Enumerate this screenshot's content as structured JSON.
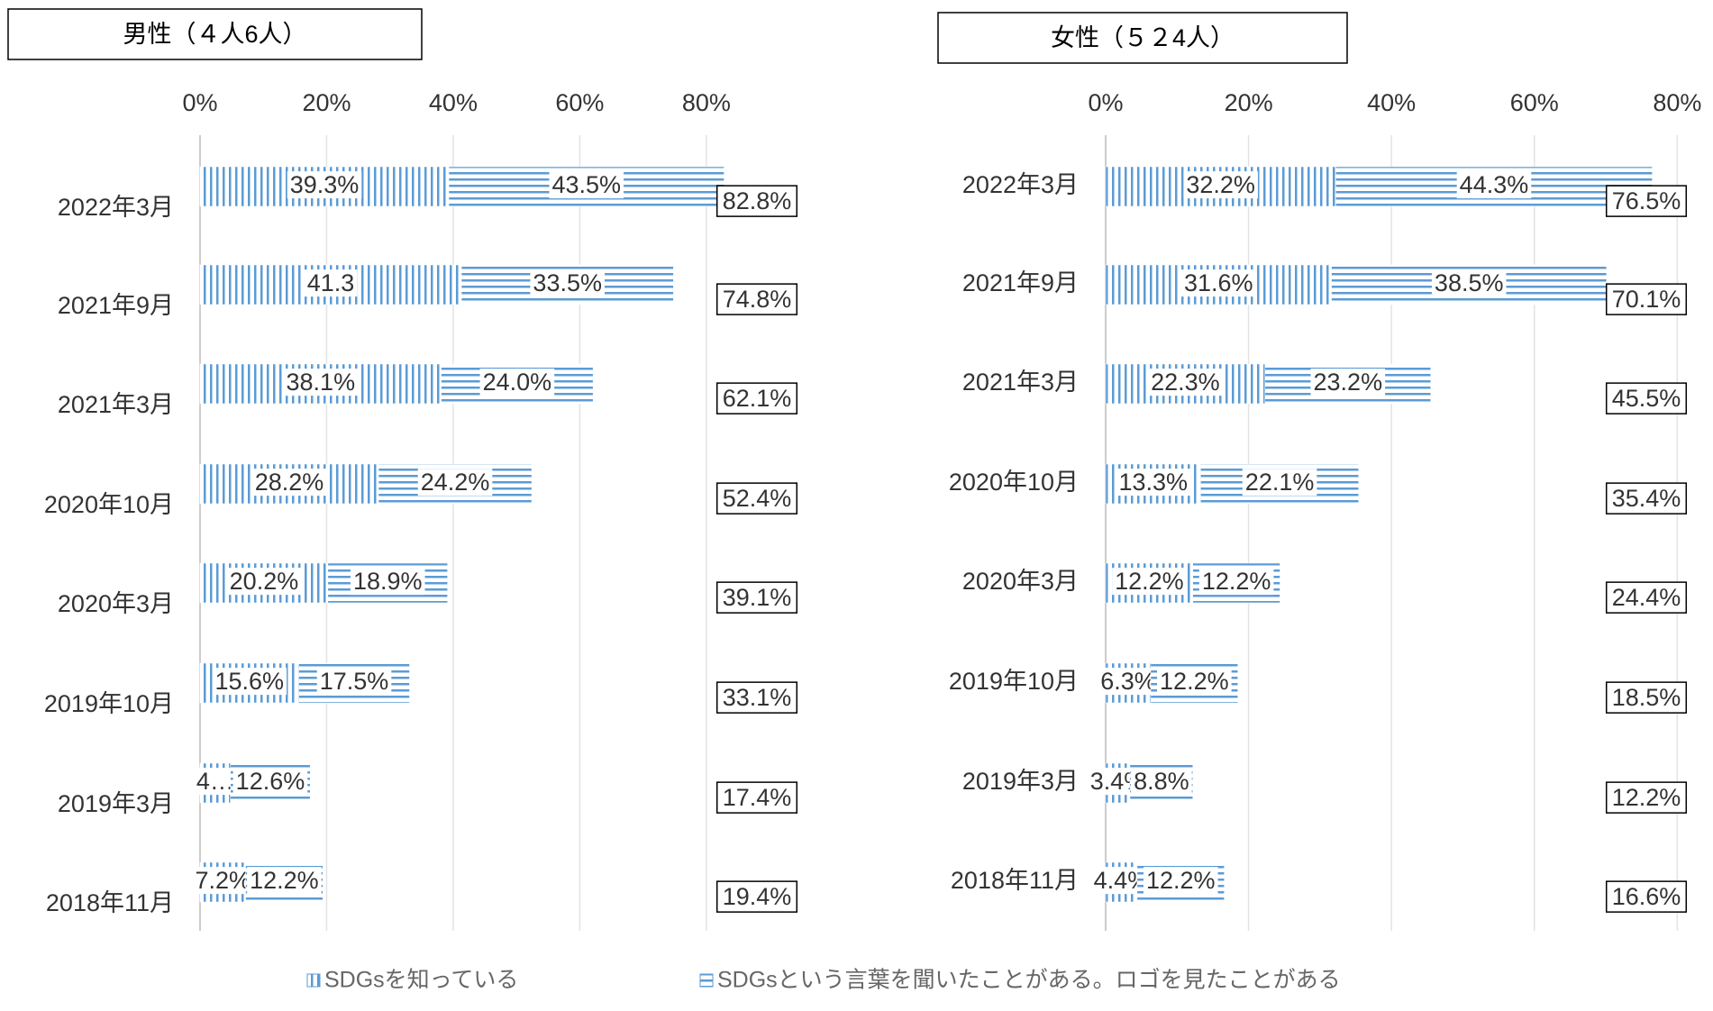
{
  "chart_data": [
    {
      "type": "bar",
      "title": "男性（４人6人）",
      "categories": [
        "2022年3月",
        "2021年9月",
        "2021年3月",
        "2020年10月",
        "2020年3月",
        "2019年10月",
        "2019年3月",
        "2018年11月"
      ],
      "series": [
        {
          "name": "SDGsを知っている",
          "color": "#5b9bd5",
          "values": [
            39.3,
            41.3,
            38.1,
            28.2,
            20.2,
            15.6,
            4.8,
            7.2
          ],
          "value_labels": [
            "39.3%",
            "41.3",
            "38.1%",
            "28.2%",
            "20.2%",
            "15.6%",
            "4…",
            "7.2%"
          ]
        },
        {
          "name": "SDGsという言葉を聞いたことがある。ロゴを見たことがある",
          "color": "#5b9bd5",
          "values": [
            43.5,
            33.5,
            24.0,
            24.2,
            18.9,
            17.5,
            12.6,
            12.2
          ],
          "value_labels": [
            "43.5%",
            "33.5%",
            "24.0%",
            "24.2%",
            "18.9%",
            "17.5%",
            "12.6%",
            "12.2%"
          ]
        }
      ],
      "totals": [
        82.8,
        74.8,
        62.1,
        52.4,
        39.1,
        33.1,
        17.4,
        19.4
      ],
      "total_labels": [
        "82.8%",
        "74.8%",
        "62.1%",
        "52.4%",
        "39.1%",
        "33.1%",
        "17.4%",
        "19.4%"
      ],
      "xlim": [
        0,
        85
      ],
      "xticks": [
        {
          "value": 0,
          "label": "0%"
        },
        {
          "value": 20,
          "label": "20%"
        },
        {
          "value": 40,
          "label": "40%"
        },
        {
          "value": 60,
          "label": "60%"
        },
        {
          "value": 80,
          "label": "80%"
        }
      ],
      "grid": true
    },
    {
      "type": "bar",
      "title": "女性（５２4人）",
      "categories": [
        "2022年3月",
        "2021年9月",
        "2021年3月",
        "2020年10月",
        "2020年3月",
        "2019年10月",
        "2019年3月",
        "2018年11月"
      ],
      "series": [
        {
          "name": "SDGsを知っている",
          "color": "#5b9bd5",
          "values": [
            32.2,
            31.6,
            22.3,
            13.3,
            12.2,
            6.3,
            3.4,
            4.4
          ],
          "value_labels": [
            "32.2%",
            "31.6%",
            "22.3%",
            "13.3%",
            "12.2%",
            "6.3%",
            "3.4%",
            "4.4%"
          ]
        },
        {
          "name": "SDGsという言葉を聞いたことがある。ロゴを見たことがある",
          "color": "#5b9bd5",
          "values": [
            44.3,
            38.5,
            23.2,
            22.1,
            12.2,
            12.2,
            8.8,
            12.2
          ],
          "value_labels": [
            "44.3%",
            "38.5%",
            "23.2%",
            "22.1%",
            "12.2%",
            "12.2%",
            "8.8%",
            "12.2%"
          ]
        }
      ],
      "totals": [
        76.5,
        70.1,
        45.5,
        35.4,
        24.4,
        18.5,
        12.2,
        16.6
      ],
      "total_labels": [
        "76.5%",
        "70.1%",
        "45.5%",
        "35.4%",
        "24.4%",
        "18.5%",
        "12.2%",
        "16.6%"
      ],
      "xlim": [
        0,
        85
      ],
      "xticks": [
        {
          "value": 0,
          "label": "0%"
        },
        {
          "value": 20,
          "label": "20%"
        },
        {
          "value": 40,
          "label": "40%"
        },
        {
          "value": 60,
          "label": "60%"
        },
        {
          "value": 80,
          "label": "80%"
        }
      ],
      "grid": true
    }
  ]
}
